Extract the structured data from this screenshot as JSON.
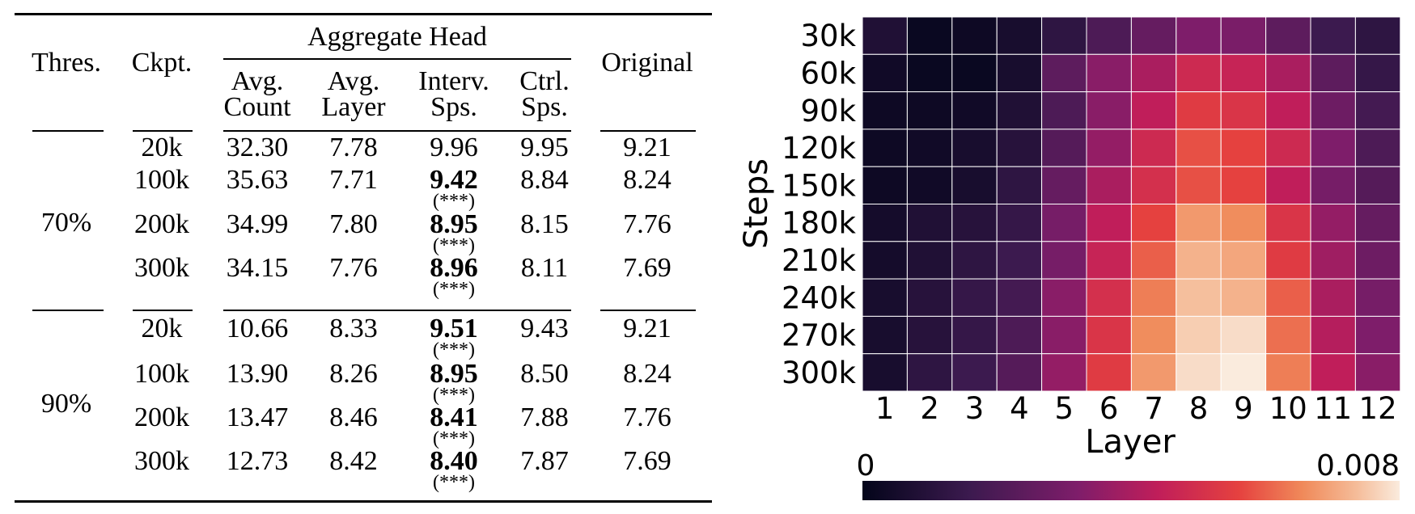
{
  "table": {
    "headers": {
      "thres": "Thres.",
      "ckpt": "Ckpt.",
      "group": "Aggregate Head",
      "avg_count": [
        "Avg.",
        "Count"
      ],
      "avg_layer": [
        "Avg.",
        "Layer"
      ],
      "interv": [
        "Interv.",
        "Sps."
      ],
      "ctrl": [
        "Ctrl.",
        "Sps."
      ],
      "original": "Original"
    },
    "groups": [
      {
        "threshold": "70%",
        "rows": [
          {
            "ckpt": "20k",
            "count": "32.30",
            "layer": "7.78",
            "interv": "9.96",
            "interv_bold": false,
            "sig": "",
            "ctrl": "9.95",
            "orig": "9.21"
          },
          {
            "ckpt": "100k",
            "count": "35.63",
            "layer": "7.71",
            "interv": "9.42",
            "interv_bold": true,
            "sig": "(***)",
            "ctrl": "8.84",
            "orig": "8.24"
          },
          {
            "ckpt": "200k",
            "count": "34.99",
            "layer": "7.80",
            "interv": "8.95",
            "interv_bold": true,
            "sig": "(***)",
            "ctrl": "8.15",
            "orig": "7.76"
          },
          {
            "ckpt": "300k",
            "count": "34.15",
            "layer": "7.76",
            "interv": "8.96",
            "interv_bold": true,
            "sig": "(***)",
            "ctrl": "8.11",
            "orig": "7.69"
          }
        ]
      },
      {
        "threshold": "90%",
        "rows": [
          {
            "ckpt": "20k",
            "count": "10.66",
            "layer": "8.33",
            "interv": "9.51",
            "interv_bold": true,
            "sig": "(***)",
            "ctrl": "9.43",
            "orig": "9.21"
          },
          {
            "ckpt": "100k",
            "count": "13.90",
            "layer": "8.26",
            "interv": "8.95",
            "interv_bold": true,
            "sig": "(***)",
            "ctrl": "8.50",
            "orig": "8.24"
          },
          {
            "ckpt": "200k",
            "count": "13.47",
            "layer": "8.46",
            "interv": "8.41",
            "interv_bold": true,
            "sig": "(***)",
            "ctrl": "7.88",
            "orig": "7.76"
          },
          {
            "ckpt": "300k",
            "count": "12.73",
            "layer": "8.42",
            "interv": "8.40",
            "interv_bold": true,
            "sig": "(***)",
            "ctrl": "7.87",
            "orig": "7.69"
          }
        ]
      }
    ]
  },
  "chart_data": {
    "type": "heatmap",
    "xlabel": "Layer",
    "ylabel": "Steps",
    "x": [
      "1",
      "2",
      "3",
      "4",
      "5",
      "6",
      "7",
      "8",
      "9",
      "10",
      "11",
      "12"
    ],
    "y": [
      "30k",
      "60k",
      "90k",
      "120k",
      "150k",
      "180k",
      "210k",
      "240k",
      "270k",
      "300k"
    ],
    "values": [
      [
        0.0008,
        0.0002,
        0.0003,
        0.0006,
        0.0012,
        0.002,
        0.0026,
        0.0032,
        0.0031,
        0.0024,
        0.0016,
        0.0012
      ],
      [
        0.0004,
        0.0002,
        0.0002,
        0.0006,
        0.0024,
        0.0034,
        0.004,
        0.0048,
        0.0046,
        0.004,
        0.0024,
        0.0014
      ],
      [
        0.0003,
        0.0003,
        0.0004,
        0.0008,
        0.002,
        0.0034,
        0.0044,
        0.0054,
        0.0052,
        0.0044,
        0.0028,
        0.0018
      ],
      [
        0.0003,
        0.0004,
        0.0006,
        0.001,
        0.0022,
        0.0036,
        0.0048,
        0.0058,
        0.0056,
        0.0048,
        0.0032,
        0.002
      ],
      [
        0.0003,
        0.0004,
        0.0006,
        0.0012,
        0.0026,
        0.004,
        0.005,
        0.0058,
        0.0056,
        0.0044,
        0.003,
        0.0022
      ],
      [
        0.0005,
        0.0008,
        0.001,
        0.0014,
        0.003,
        0.0044,
        0.0056,
        0.0068,
        0.0066,
        0.0052,
        0.0036,
        0.0026
      ],
      [
        0.0005,
        0.0008,
        0.0012,
        0.0016,
        0.003,
        0.0046,
        0.006,
        0.0072,
        0.007,
        0.0054,
        0.0038,
        0.0028
      ],
      [
        0.0006,
        0.001,
        0.0014,
        0.0018,
        0.0034,
        0.005,
        0.0064,
        0.0074,
        0.0072,
        0.006,
        0.004,
        0.003
      ],
      [
        0.0006,
        0.001,
        0.0014,
        0.002,
        0.0034,
        0.0052,
        0.0066,
        0.0076,
        0.0078,
        0.0062,
        0.0042,
        0.0032
      ],
      [
        0.0006,
        0.0012,
        0.0016,
        0.0022,
        0.0036,
        0.0054,
        0.0068,
        0.0078,
        0.008,
        0.0064,
        0.0044,
        0.0034
      ]
    ],
    "colorbar": {
      "min_label": "0",
      "max_label": "0.008",
      "range": [
        0,
        0.008
      ],
      "colormap": "rocket"
    }
  }
}
